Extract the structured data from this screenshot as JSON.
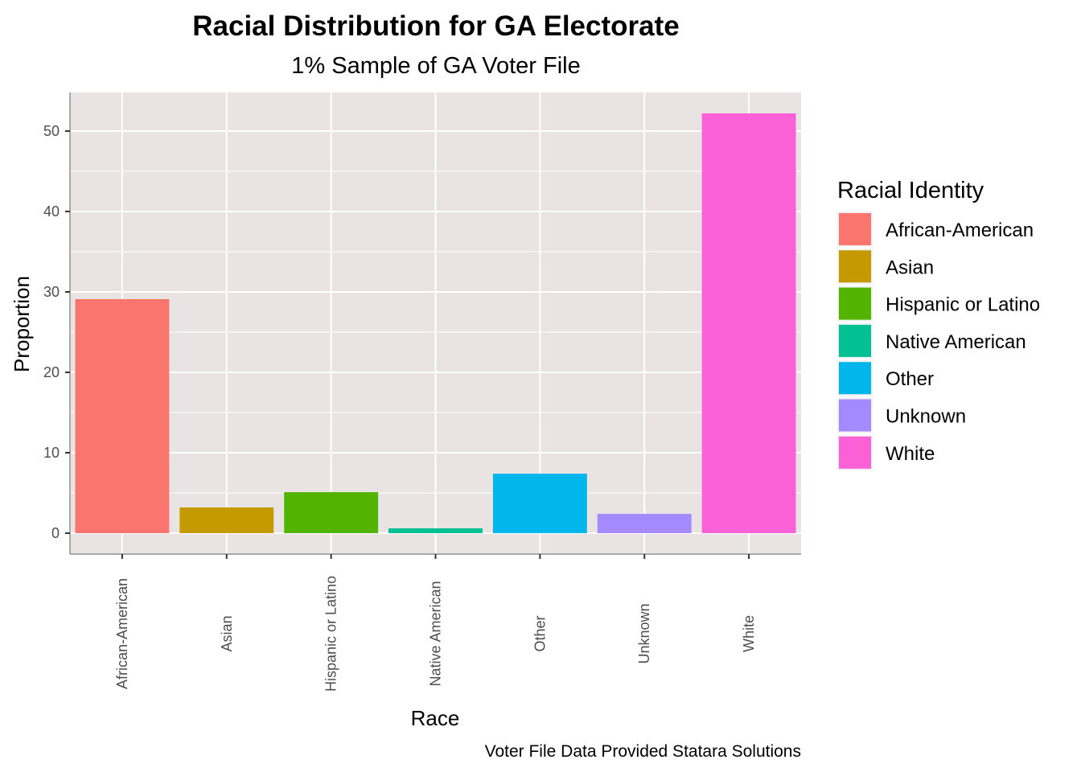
{
  "chart_data": {
    "type": "bar",
    "title": "Racial Distribution for GA Electorate",
    "subtitle": "1% Sample of GA Voter File",
    "xlabel": "Race",
    "ylabel": "Proportion",
    "caption": "Voter File Data Provided Statara Solutions",
    "categories": [
      "African-American",
      "Asian",
      "Hispanic or Latino",
      "Native American",
      "Other",
      "Unknown",
      "White"
    ],
    "values": [
      29.1,
      3.2,
      5.1,
      0.6,
      7.4,
      2.4,
      52.2
    ],
    "colors": [
      "#F8766D",
      "#C49A00",
      "#53B400",
      "#00C094",
      "#00B6EB",
      "#A58AFF",
      "#FB61D7"
    ],
    "ylim": [
      0,
      54.8
    ],
    "yticks": [
      0,
      10,
      20,
      30,
      40,
      50
    ],
    "grid": true,
    "panel_background": "#EBEBEB",
    "legend": {
      "title": "Racial Identity",
      "position": "right",
      "entries": [
        "African-American",
        "Asian",
        "Hispanic or Latino",
        "Native American",
        "Other",
        "Unknown",
        "White"
      ]
    }
  }
}
